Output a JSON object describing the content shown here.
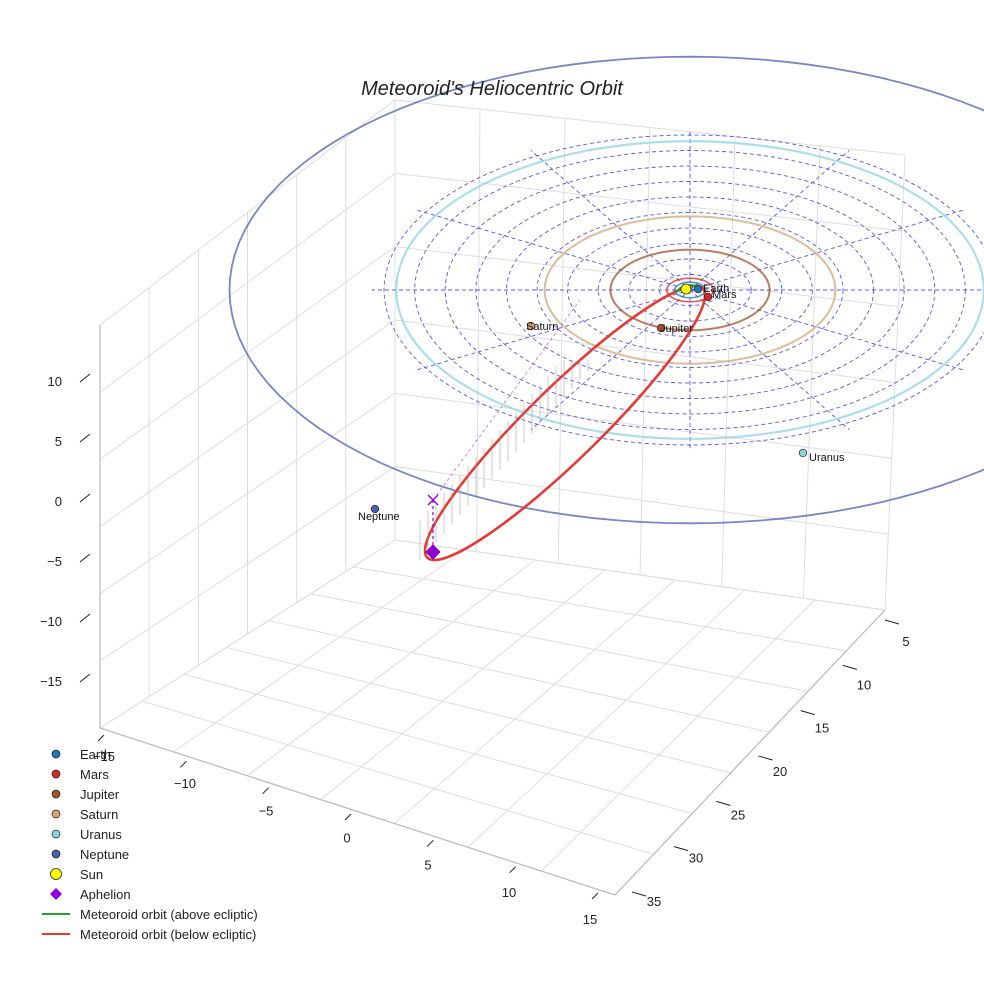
{
  "chart_data": {
    "type": "3d-orbit",
    "title": "Meteoroid's Heliocentric Orbit",
    "x_ticks": [
      "−15",
      "−10",
      "−5",
      "0",
      "5",
      "10",
      "15"
    ],
    "y_ticks": [
      "5",
      "10",
      "15",
      "20",
      "25",
      "30",
      "35"
    ],
    "z_ticks": [
      "10",
      "5",
      "0",
      "−5",
      "−10",
      "−15"
    ],
    "ecliptic_grid_radii_au": [
      2,
      4,
      6,
      8,
      10,
      12,
      14,
      16,
      18,
      20
    ],
    "planets": [
      {
        "name": "Earth",
        "a_au": 1.0,
        "color": "#1f77b4"
      },
      {
        "name": "Mars",
        "a_au": 1.52,
        "color": "#d62728"
      },
      {
        "name": "Jupiter",
        "a_au": 5.2,
        "color": "#a0522d"
      },
      {
        "name": "Saturn",
        "a_au": 9.5,
        "color": "#d2a679"
      },
      {
        "name": "Uranus",
        "a_au": 19.2,
        "color": "#8fd3e0"
      },
      {
        "name": "Neptune",
        "a_au": 30.1,
        "color": "#4a5fb0"
      }
    ],
    "sun": {
      "name": "Sun",
      "color": "#ffff00"
    },
    "aphelion": {
      "name": "Aphelion",
      "color": "#9400d3"
    },
    "meteoroid_orbit": {
      "above_label": "Meteoroid orbit (above ecliptic)",
      "below_label": "Meteoroid orbit (below ecliptic)",
      "above_color": "#2ca02c",
      "below_color": "#e53935"
    },
    "grid": true,
    "legend_position": "bottom-left"
  },
  "legend": [
    {
      "label": "Earth",
      "marker": "circle",
      "color": "#1f77b4"
    },
    {
      "label": "Mars",
      "marker": "circle",
      "color": "#d62728"
    },
    {
      "label": "Jupiter",
      "marker": "circle",
      "color": "#a0522d"
    },
    {
      "label": "Saturn",
      "marker": "circle",
      "color": "#d2a679"
    },
    {
      "label": "Uranus",
      "marker": "circle",
      "color": "#8fd3e0"
    },
    {
      "label": "Neptune",
      "marker": "circle",
      "color": "#4a5fb0"
    },
    {
      "label": "Sun",
      "marker": "sun",
      "color": "#ffff00"
    },
    {
      "label": "Aphelion",
      "marker": "diamond",
      "color": "#9400d3"
    },
    {
      "label": "Meteoroid orbit (above ecliptic)",
      "marker": "line",
      "color": "#2ca02c"
    },
    {
      "label": "Meteoroid orbit (below ecliptic)",
      "marker": "line",
      "color": "#e53935"
    }
  ]
}
